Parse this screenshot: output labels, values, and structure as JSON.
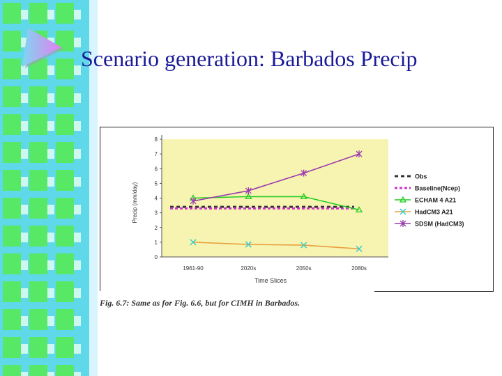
{
  "slide": {
    "title": "Scenario generation: Barbados Precip",
    "caption": "Fig. 6.7: Same as for Fig. 6.6, but for CIMH in Barbados."
  },
  "colors": {
    "stripe_green": "#57e866",
    "stripe_cyan": "#5fd8ea",
    "logo_left": "#7fd6f0",
    "logo_right": "#e47ef0",
    "plot_bg": "#f7f3b0",
    "title": "#1a1a99"
  },
  "chart_data": {
    "type": "line",
    "title": "",
    "xlabel": "Time Slices",
    "ylabel": "Precip (mm/day)",
    "categories": [
      "1961-90",
      "2020s",
      "2050s",
      "2080s"
    ],
    "ylim": [
      0,
      8
    ],
    "yticks": [
      0,
      1,
      2,
      3,
      4,
      5,
      6,
      7,
      8
    ],
    "grid": false,
    "legend_position": "right",
    "series": [
      {
        "name": "Obs",
        "values": [
          3.4,
          3.4,
          3.4,
          3.4
        ],
        "color": "#333333",
        "style": "dashed",
        "marker": "none"
      },
      {
        "name": "Baseline(Ncep)",
        "values": [
          3.3,
          3.3,
          3.3,
          3.3
        ],
        "color": "#cc33cc",
        "style": "dotted",
        "marker": "none"
      },
      {
        "name": "ECHAM 4 A21",
        "values": [
          4.0,
          4.1,
          4.1,
          3.2
        ],
        "color": "#22cc22",
        "style": "solid",
        "marker": "triangle"
      },
      {
        "name": "HadCM3 A21",
        "values": [
          1.0,
          0.85,
          0.8,
          0.55
        ],
        "color": "#e8a040",
        "style": "solid",
        "marker": "x",
        "marker_color": "#33cccc"
      },
      {
        "name": "SDSM (HadCM3)",
        "values": [
          3.8,
          4.5,
          5.7,
          7.0
        ],
        "color": "#9a3ab0",
        "style": "solid",
        "marker": "star"
      }
    ]
  }
}
